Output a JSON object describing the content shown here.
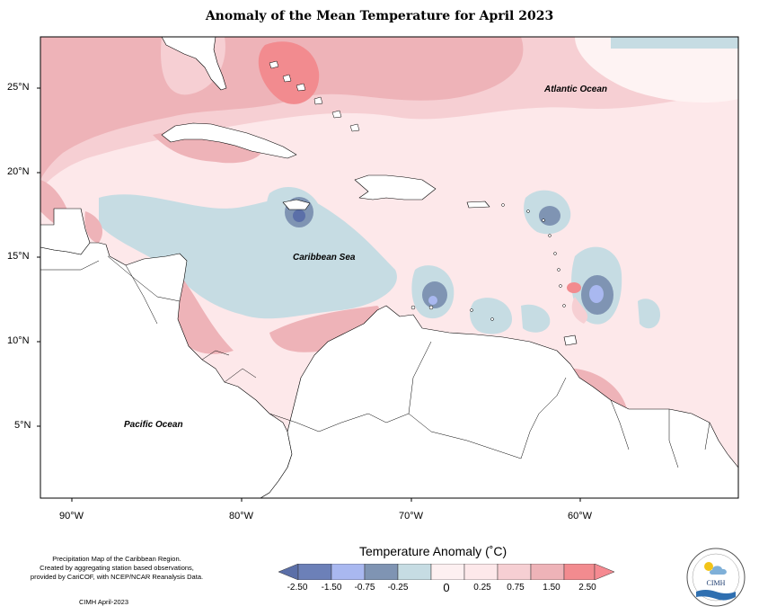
{
  "title": "Anomaly of the Mean Temperature for April 2023",
  "ocean_labels": {
    "atlantic": "Atlantic Ocean",
    "caribbean": "Caribbean Sea",
    "pacific": "Pacific Ocean"
  },
  "axes": {
    "lat_ticks": [
      "25°N",
      "20°N",
      "15°N",
      "10°N",
      "5°N"
    ],
    "lon_ticks": [
      "90°W",
      "80°W",
      "70°W",
      "60°W"
    ]
  },
  "footer": {
    "line1": "Precipitation Map of the Caribbean Region.",
    "line2": "Created by aggregating station based observations,",
    "line3": "provided by CariCOF, with NCEP/NCAR Reanalysis Data.",
    "credit": "CIMH April-2023"
  },
  "legend": {
    "title": "Temperature Anomaly (˚C)",
    "ticks": [
      "-2.50",
      "-1.50",
      "-0.75",
      "-0.25",
      "0",
      "0.25",
      "0.75",
      "1.50",
      "2.50"
    ],
    "colors": [
      "#5b6fa8",
      "#8a9cd8",
      "#a9b8f0",
      "#7f94b3",
      "#c6dce3",
      "#fde8ea",
      "#f6cfd3",
      "#eeb3b8",
      "#f28b8f",
      "#f58a91"
    ]
  },
  "logo": {
    "text": "CIMH"
  }
}
